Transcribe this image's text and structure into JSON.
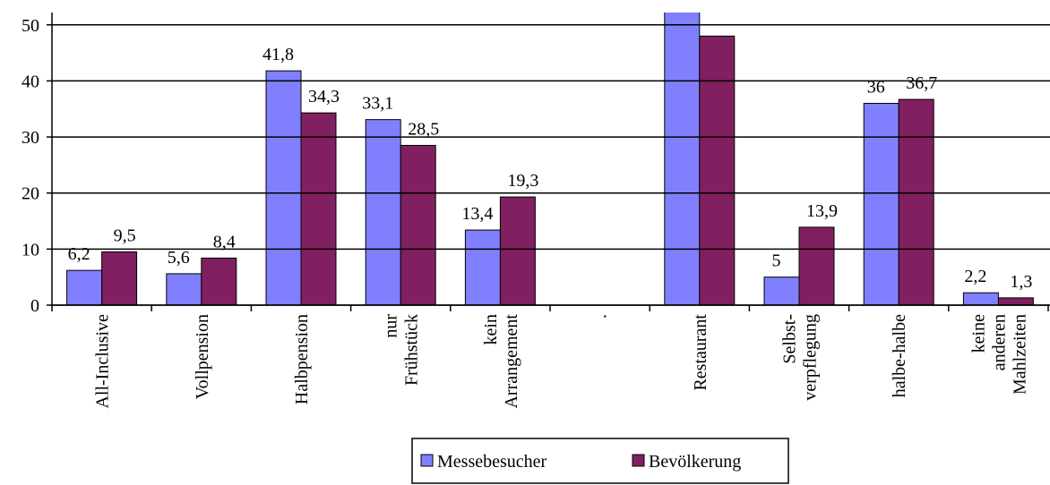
{
  "chart_data": {
    "type": "bar",
    "categories": [
      [
        "All-Inclusive"
      ],
      [
        "Vollpension"
      ],
      [
        "Halbpension"
      ],
      [
        "nur",
        "Frühstück"
      ],
      [
        "kein",
        "Arrangement"
      ],
      [
        "."
      ],
      [
        "Restaurant"
      ],
      [
        "Selbst-",
        "verpflegung"
      ],
      [
        "halbe-halbe"
      ],
      [
        "keine",
        "anderen",
        "Mahlzeiten"
      ]
    ],
    "series": [
      {
        "name": "Messebesucher",
        "color": "#8080ff",
        "values": [
          6.2,
          5.6,
          41.8,
          33.1,
          13.4,
          null,
          55,
          5,
          36,
          2.2
        ],
        "value_labels": [
          "6,2",
          "5,6",
          "41,8",
          "33,1",
          "13,4",
          null,
          null,
          "5",
          "36",
          "2,2"
        ]
      },
      {
        "name": "Bevölkerung",
        "color": "#802060",
        "values": [
          9.5,
          8.4,
          34.3,
          28.5,
          19.3,
          null,
          48,
          13.9,
          36.7,
          1.3
        ],
        "value_labels": [
          "9,5",
          "8,4",
          "34,3",
          "28,5",
          "19,3",
          null,
          null,
          "13,9",
          "36,7",
          "1,3"
        ]
      }
    ],
    "ylim": [
      0,
      52.2
    ],
    "yticks": [
      0,
      10,
      20,
      30,
      40,
      50
    ],
    "grid": true,
    "legend": "bottom"
  }
}
